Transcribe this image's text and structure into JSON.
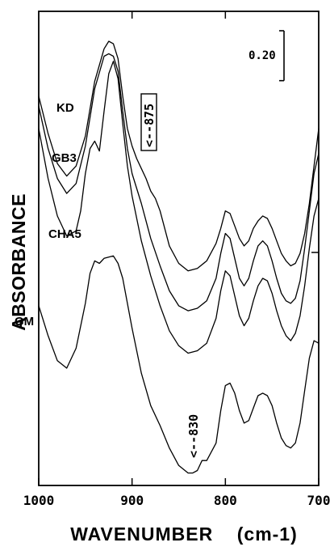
{
  "chart_data": {
    "type": "line",
    "title": "",
    "xlabel": "WAVENUMBER    (cm-1)",
    "ylabel": "ABSORBANCE",
    "xlim": [
      1000,
      700
    ],
    "ylim": [
      0,
      1.9
    ],
    "x_reversed": true,
    "grid": false,
    "scale_bar": {
      "label": "0.20",
      "value": 0.2
    },
    "x_ticks": [
      {
        "value": 1000,
        "label": "1000"
      },
      {
        "value": 900,
        "label": "900"
      },
      {
        "value": 800,
        "label": "800"
      },
      {
        "value": 700,
        "label": "700"
      }
    ],
    "series": [
      {
        "name": "KD",
        "x": [
          1000,
          990,
          980,
          970,
          960,
          950,
          940,
          930,
          925,
          920,
          915,
          910,
          905,
          900,
          895,
          890,
          885,
          880,
          875,
          870,
          860,
          850,
          840,
          830,
          820,
          810,
          805,
          800,
          795,
          790,
          785,
          780,
          775,
          770,
          765,
          760,
          755,
          750,
          745,
          740,
          735,
          730,
          725,
          720,
          715,
          710,
          705,
          700
        ],
        "y": [
          1.56,
          1.41,
          1.29,
          1.24,
          1.28,
          1.4,
          1.62,
          1.75,
          1.78,
          1.77,
          1.71,
          1.56,
          1.43,
          1.36,
          1.31,
          1.27,
          1.23,
          1.18,
          1.15,
          1.1,
          0.96,
          0.89,
          0.86,
          0.87,
          0.9,
          0.97,
          1.03,
          1.1,
          1.09,
          1.04,
          0.99,
          0.96,
          0.98,
          1.03,
          1.06,
          1.08,
          1.07,
          1.03,
          0.98,
          0.93,
          0.9,
          0.88,
          0.89,
          0.93,
          1.01,
          1.13,
          1.28,
          1.43
        ]
      },
      {
        "name": "GB3",
        "x": [
          1000,
          990,
          980,
          970,
          960,
          950,
          940,
          930,
          925,
          920,
          915,
          910,
          905,
          900,
          890,
          880,
          870,
          860,
          850,
          840,
          830,
          820,
          810,
          805,
          800,
          795,
          790,
          785,
          780,
          775,
          770,
          765,
          760,
          755,
          750,
          745,
          740,
          735,
          730,
          725,
          720,
          715,
          710,
          705,
          700
        ],
        "y": [
          1.52,
          1.35,
          1.23,
          1.17,
          1.21,
          1.36,
          1.59,
          1.72,
          1.73,
          1.72,
          1.66,
          1.5,
          1.35,
          1.25,
          1.13,
          0.99,
          0.88,
          0.78,
          0.72,
          0.7,
          0.71,
          0.74,
          0.83,
          0.93,
          1.01,
          0.99,
          0.91,
          0.83,
          0.8,
          0.83,
          0.9,
          0.96,
          0.98,
          0.96,
          0.9,
          0.83,
          0.77,
          0.74,
          0.73,
          0.75,
          0.82,
          0.95,
          1.1,
          1.25,
          1.33
        ]
      },
      {
        "name": "CHA5",
        "x": [
          1000,
          990,
          980,
          970,
          960,
          955,
          950,
          945,
          940,
          935,
          930,
          925,
          920,
          915,
          910,
          905,
          900,
          890,
          880,
          870,
          860,
          850,
          840,
          830,
          820,
          810,
          805,
          800,
          795,
          790,
          785,
          780,
          775,
          770,
          765,
          760,
          755,
          750,
          745,
          740,
          735,
          730,
          725,
          720,
          715,
          710,
          705,
          700
        ],
        "y": [
          1.43,
          1.23,
          1.08,
          1.0,
          1.02,
          1.1,
          1.25,
          1.35,
          1.38,
          1.34,
          1.5,
          1.65,
          1.7,
          1.63,
          1.45,
          1.28,
          1.16,
          0.98,
          0.84,
          0.72,
          0.62,
          0.56,
          0.53,
          0.54,
          0.57,
          0.67,
          0.78,
          0.86,
          0.84,
          0.76,
          0.68,
          0.64,
          0.67,
          0.74,
          0.8,
          0.83,
          0.82,
          0.77,
          0.7,
          0.64,
          0.6,
          0.58,
          0.61,
          0.68,
          0.8,
          0.95,
          1.08,
          1.15
        ]
      },
      {
        "name": "GM",
        "x": [
          1000,
          990,
          980,
          970,
          960,
          950,
          945,
          940,
          935,
          930,
          920,
          915,
          910,
          905,
          900,
          890,
          880,
          870,
          860,
          850,
          840,
          835,
          830,
          825,
          820,
          810,
          805,
          800,
          795,
          790,
          785,
          780,
          775,
          770,
          765,
          760,
          755,
          750,
          745,
          740,
          735,
          730,
          725,
          720,
          715,
          710,
          705,
          700
        ],
        "y": [
          0.72,
          0.6,
          0.5,
          0.47,
          0.55,
          0.73,
          0.85,
          0.9,
          0.89,
          0.91,
          0.92,
          0.89,
          0.83,
          0.73,
          0.63,
          0.45,
          0.32,
          0.24,
          0.15,
          0.08,
          0.05,
          0.05,
          0.06,
          0.1,
          0.1,
          0.17,
          0.3,
          0.4,
          0.41,
          0.37,
          0.3,
          0.25,
          0.26,
          0.31,
          0.36,
          0.37,
          0.36,
          0.32,
          0.25,
          0.19,
          0.16,
          0.15,
          0.17,
          0.25,
          0.38,
          0.51,
          0.58,
          0.57
        ]
      }
    ],
    "curve_labels": [
      "KD",
      "GB3",
      "CHA5",
      "GM"
    ],
    "annotations": [
      {
        "text": "<--875",
        "boxed": true
      },
      {
        "text": "<--830",
        "boxed": false
      }
    ]
  }
}
